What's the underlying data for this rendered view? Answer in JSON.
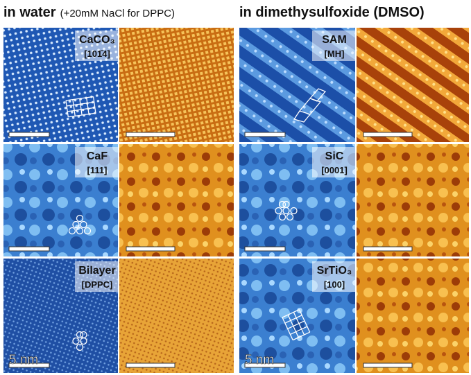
{
  "header": {
    "left_title": "in water",
    "left_note": "(+20mM NaCl for DPPC)",
    "right_title": "in dimethysulfoxide (DMSO)"
  },
  "panels": [
    {
      "label": "CaCO₃",
      "sublabel": "[101̄4]"
    },
    {
      "label": "SAM",
      "sublabel": "[MH]"
    },
    {
      "label": "CaF",
      "sublabel": "[111]"
    },
    {
      "label": "SiC",
      "sublabel": "[0001]"
    },
    {
      "label": "Bilayer",
      "sublabel": "[DPPC]"
    },
    {
      "label": "SrTiO₃",
      "sublabel": "[100]"
    }
  ],
  "scale_labels": [
    "5 nm",
    "5 nm"
  ]
}
